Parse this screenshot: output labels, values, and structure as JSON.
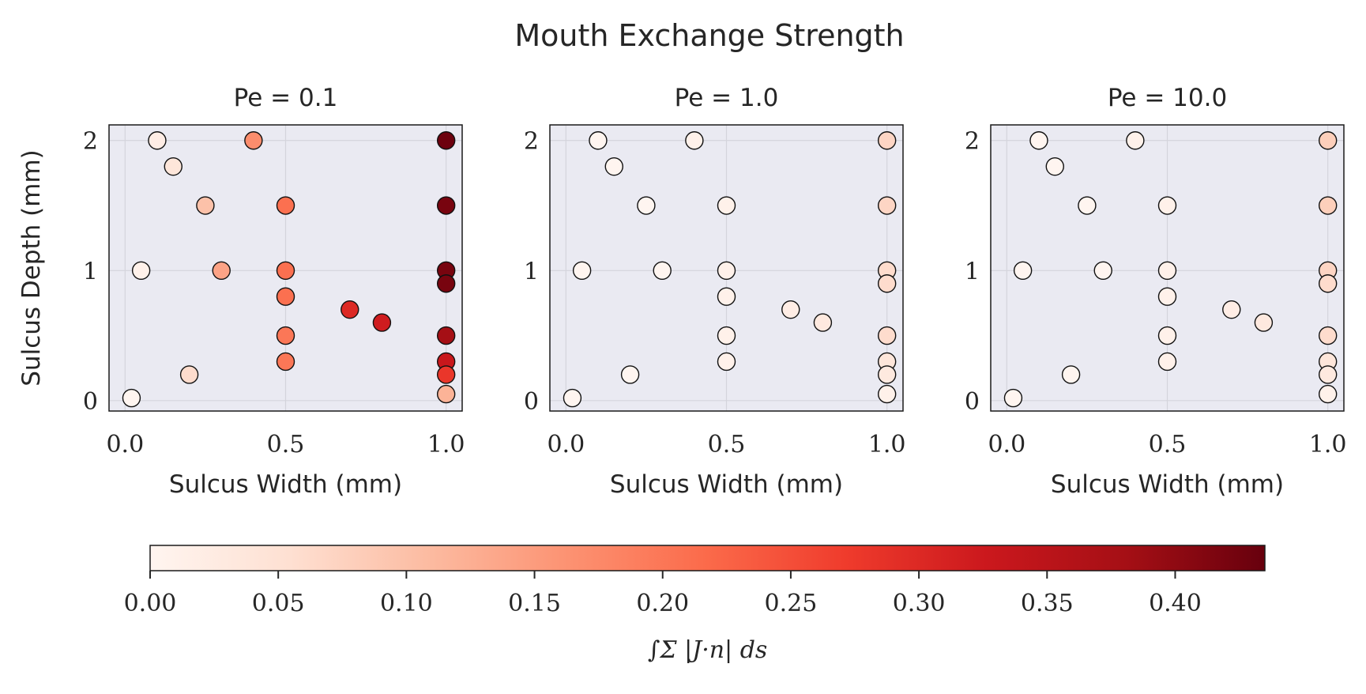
{
  "figure_title": "Mouth Exchange Strength",
  "colorbar": {
    "label": "∫Σ |J·n| ds",
    "ticks": [
      "0.00",
      "0.05",
      "0.10",
      "0.15",
      "0.20",
      "0.25",
      "0.30",
      "0.35",
      "0.40"
    ],
    "tick_values": [
      0,
      0.05,
      0.1,
      0.15,
      0.2,
      0.25,
      0.3,
      0.35,
      0.4
    ],
    "range": [
      0,
      0.435
    ],
    "colormap": "Reds",
    "colors": [
      "#fff5f0",
      "#fee0d2",
      "#fcbba1",
      "#fc9272",
      "#fb6a4a",
      "#ef3b2c",
      "#cb181d",
      "#a50f15",
      "#67000d"
    ]
  },
  "chart_data": [
    {
      "type": "scatter",
      "title": "Pe = 0.1",
      "xlabel": "Sulcus Width (mm)",
      "ylabel": "Sulcus Depth (mm)",
      "xlim": [
        -0.05,
        1.05
      ],
      "ylim": [
        -0.08,
        2.12
      ],
      "xticks": [
        "0.0",
        "0.5",
        "1.0"
      ],
      "xtick_values": [
        0,
        0.5,
        1.0
      ],
      "yticks": [
        "0",
        "1",
        "2"
      ],
      "ytick_values": [
        0,
        1,
        2
      ],
      "grid": true,
      "points": [
        {
          "x": 0.02,
          "y": 0.02,
          "c": 0.0
        },
        {
          "x": 0.05,
          "y": 1.0,
          "c": 0.01
        },
        {
          "x": 0.1,
          "y": 2.0,
          "c": 0.02
        },
        {
          "x": 0.15,
          "y": 1.8,
          "c": 0.04
        },
        {
          "x": 0.2,
          "y": 0.2,
          "c": 0.06
        },
        {
          "x": 0.25,
          "y": 1.5,
          "c": 0.1
        },
        {
          "x": 0.3,
          "y": 1.0,
          "c": 0.14
        },
        {
          "x": 0.4,
          "y": 2.0,
          "c": 0.17
        },
        {
          "x": 0.5,
          "y": 1.5,
          "c": 0.21
        },
        {
          "x": 0.5,
          "y": 1.0,
          "c": 0.21
        },
        {
          "x": 0.5,
          "y": 0.8,
          "c": 0.21
        },
        {
          "x": 0.5,
          "y": 0.5,
          "c": 0.2
        },
        {
          "x": 0.5,
          "y": 0.3,
          "c": 0.2
        },
        {
          "x": 0.7,
          "y": 0.7,
          "c": 0.3
        },
        {
          "x": 0.8,
          "y": 0.6,
          "c": 0.32
        },
        {
          "x": 1.0,
          "y": 2.0,
          "c": 0.43
        },
        {
          "x": 1.0,
          "y": 1.5,
          "c": 0.42
        },
        {
          "x": 1.0,
          "y": 1.0,
          "c": 0.42
        },
        {
          "x": 1.0,
          "y": 0.9,
          "c": 0.42
        },
        {
          "x": 1.0,
          "y": 0.5,
          "c": 0.38
        },
        {
          "x": 1.0,
          "y": 0.3,
          "c": 0.33
        },
        {
          "x": 1.0,
          "y": 0.2,
          "c": 0.28
        },
        {
          "x": 1.0,
          "y": 0.05,
          "c": 0.12
        }
      ]
    },
    {
      "type": "scatter",
      "title": "Pe = 1.0",
      "xlabel": "Sulcus Width (mm)",
      "ylabel": "",
      "xlim": [
        -0.05,
        1.05
      ],
      "ylim": [
        -0.08,
        2.12
      ],
      "xticks": [
        "0.0",
        "0.5",
        "1.0"
      ],
      "xtick_values": [
        0,
        0.5,
        1.0
      ],
      "yticks": [
        "0",
        "1",
        "2"
      ],
      "ytick_values": [
        0,
        1,
        2
      ],
      "grid": true,
      "points": [
        {
          "x": 0.02,
          "y": 0.02,
          "c": 0.0
        },
        {
          "x": 0.05,
          "y": 1.0,
          "c": 0.0
        },
        {
          "x": 0.1,
          "y": 2.0,
          "c": 0.0
        },
        {
          "x": 0.15,
          "y": 1.8,
          "c": 0.0
        },
        {
          "x": 0.2,
          "y": 0.2,
          "c": 0.0
        },
        {
          "x": 0.25,
          "y": 1.5,
          "c": 0.0
        },
        {
          "x": 0.3,
          "y": 1.0,
          "c": 0.0
        },
        {
          "x": 0.4,
          "y": 2.0,
          "c": 0.01
        },
        {
          "x": 0.5,
          "y": 1.5,
          "c": 0.01
        },
        {
          "x": 0.5,
          "y": 1.0,
          "c": 0.01
        },
        {
          "x": 0.5,
          "y": 0.8,
          "c": 0.01
        },
        {
          "x": 0.5,
          "y": 0.5,
          "c": 0.01
        },
        {
          "x": 0.5,
          "y": 0.3,
          "c": 0.01
        },
        {
          "x": 0.7,
          "y": 0.7,
          "c": 0.02
        },
        {
          "x": 0.8,
          "y": 0.6,
          "c": 0.03
        },
        {
          "x": 1.0,
          "y": 2.0,
          "c": 0.07
        },
        {
          "x": 1.0,
          "y": 1.5,
          "c": 0.07
        },
        {
          "x": 1.0,
          "y": 1.0,
          "c": 0.06
        },
        {
          "x": 1.0,
          "y": 0.9,
          "c": 0.06
        },
        {
          "x": 1.0,
          "y": 0.5,
          "c": 0.06
        },
        {
          "x": 1.0,
          "y": 0.3,
          "c": 0.04
        },
        {
          "x": 1.0,
          "y": 0.2,
          "c": 0.03
        },
        {
          "x": 1.0,
          "y": 0.05,
          "c": 0.01
        }
      ]
    },
    {
      "type": "scatter",
      "title": "Pe = 10.0",
      "xlabel": "Sulcus Width (mm)",
      "ylabel": "",
      "xlim": [
        -0.05,
        1.05
      ],
      "ylim": [
        -0.08,
        2.12
      ],
      "xticks": [
        "0.0",
        "0.5",
        "1.0"
      ],
      "xtick_values": [
        0,
        0.5,
        1.0
      ],
      "yticks": [
        "0",
        "1",
        "2"
      ],
      "ytick_values": [
        0,
        1,
        2
      ],
      "grid": true,
      "points": [
        {
          "x": 0.02,
          "y": 0.02,
          "c": 0.0
        },
        {
          "x": 0.05,
          "y": 1.0,
          "c": 0.0
        },
        {
          "x": 0.1,
          "y": 2.0,
          "c": 0.0
        },
        {
          "x": 0.15,
          "y": 1.8,
          "c": 0.0
        },
        {
          "x": 0.2,
          "y": 0.2,
          "c": 0.0
        },
        {
          "x": 0.25,
          "y": 1.5,
          "c": 0.0
        },
        {
          "x": 0.3,
          "y": 1.0,
          "c": 0.0
        },
        {
          "x": 0.4,
          "y": 2.0,
          "c": 0.01
        },
        {
          "x": 0.5,
          "y": 1.5,
          "c": 0.01
        },
        {
          "x": 0.5,
          "y": 1.0,
          "c": 0.01
        },
        {
          "x": 0.5,
          "y": 0.8,
          "c": 0.01
        },
        {
          "x": 0.5,
          "y": 0.5,
          "c": 0.01
        },
        {
          "x": 0.5,
          "y": 0.3,
          "c": 0.01
        },
        {
          "x": 0.7,
          "y": 0.7,
          "c": 0.02
        },
        {
          "x": 0.8,
          "y": 0.6,
          "c": 0.03
        },
        {
          "x": 1.0,
          "y": 2.0,
          "c": 0.08
        },
        {
          "x": 1.0,
          "y": 1.5,
          "c": 0.08
        },
        {
          "x": 1.0,
          "y": 1.0,
          "c": 0.07
        },
        {
          "x": 1.0,
          "y": 0.9,
          "c": 0.06
        },
        {
          "x": 1.0,
          "y": 0.5,
          "c": 0.06
        },
        {
          "x": 1.0,
          "y": 0.3,
          "c": 0.04
        },
        {
          "x": 1.0,
          "y": 0.2,
          "c": 0.03
        },
        {
          "x": 1.0,
          "y": 0.05,
          "c": 0.01
        }
      ]
    }
  ]
}
